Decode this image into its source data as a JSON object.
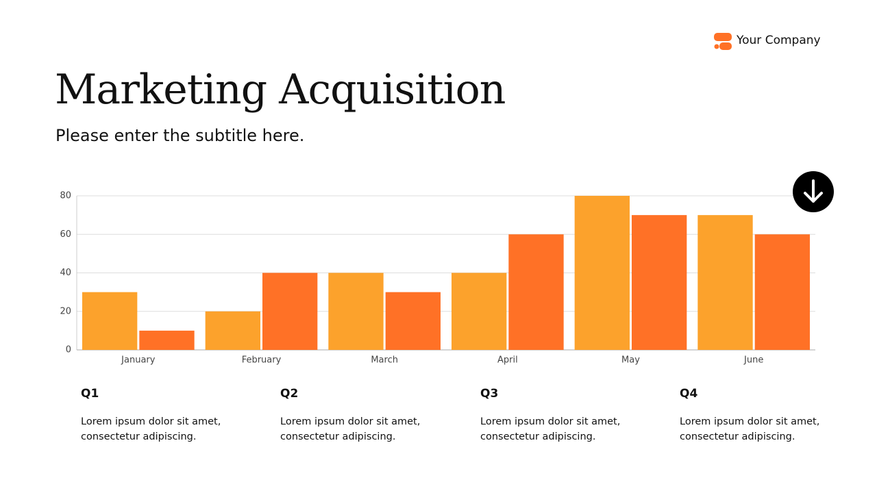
{
  "header": {
    "company": "Your Company",
    "title": "Marketing Acquisition",
    "subtitle": "Please enter the subtitle here."
  },
  "chart_data": {
    "type": "bar",
    "categories": [
      "January",
      "February",
      "March",
      "April",
      "May",
      "June"
    ],
    "series": [
      {
        "color": "#fca22c",
        "values": [
          30,
          20,
          40,
          40,
          80,
          70
        ]
      },
      {
        "color": "#ff7126",
        "values": [
          10,
          40,
          30,
          60,
          70,
          60
        ]
      }
    ],
    "ylim": [
      0,
      80
    ],
    "yticks": [
      0,
      20,
      40,
      60,
      80
    ],
    "grid": true
  },
  "quarters": [
    {
      "label": "Q1",
      "text": "Lorem ipsum dolor sit amet, consectetur adipiscing."
    },
    {
      "label": "Q2",
      "text": "Lorem ipsum dolor sit amet, consectetur adipiscing."
    },
    {
      "label": "Q3",
      "text": "Lorem ipsum dolor sit amet, consectetur adipiscing."
    },
    {
      "label": "Q4",
      "text": "Lorem ipsum dolor sit amet, consectetur adipiscing."
    }
  ]
}
